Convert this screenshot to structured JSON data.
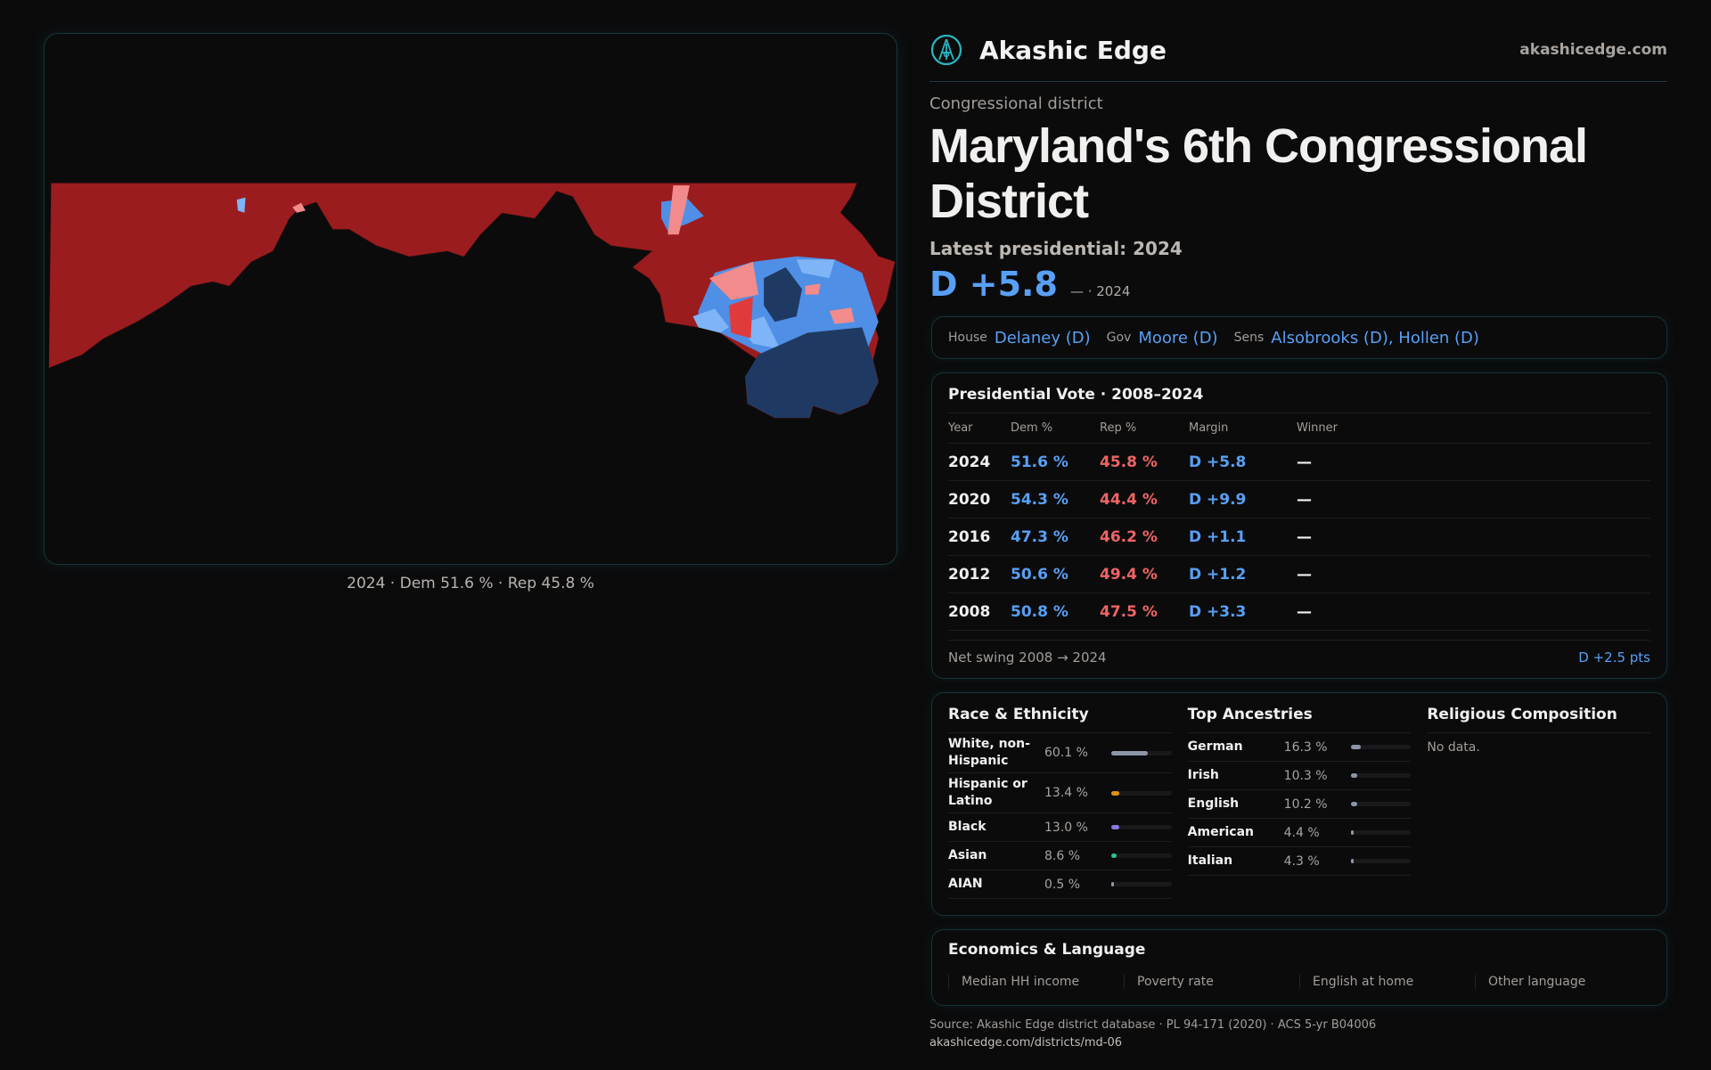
{
  "brand": {
    "name": "Akashic Edge",
    "site": "akashicedge.com"
  },
  "header": {
    "kind": "Congressional district",
    "title": "Maryland's 6th Congressional District",
    "latest": "Latest presidential: 2024",
    "margin": "D +5.8",
    "margin_sub": "— · 2024"
  },
  "map": {
    "caption": "2024 · Dem 51.6 % · Rep 45.8 %",
    "colors": {
      "safe_rep": "#9b1c1f",
      "lean_rep": "#f28b8b",
      "safe_dem": "#1f3a62",
      "lean_dem": "#4f8fe6"
    }
  },
  "officials": {
    "house_label": "House",
    "house": "Delaney (D)",
    "gov_label": "Gov",
    "gov": "Moore (D)",
    "sens_label": "Sens",
    "sens": "Alsobrooks (D), Hollen (D)"
  },
  "presidential": {
    "title": "Presidential Vote · 2008–2024",
    "columns": [
      "Year",
      "Dem %",
      "Rep %",
      "Margin",
      "Winner"
    ],
    "rows": [
      {
        "year": "2024",
        "dem": "51.6 %",
        "rep": "45.8 %",
        "margin": "D +5.8",
        "winner": "—"
      },
      {
        "year": "2020",
        "dem": "54.3 %",
        "rep": "44.4 %",
        "margin": "D +9.9",
        "winner": "—"
      },
      {
        "year": "2016",
        "dem": "47.3 %",
        "rep": "46.2 %",
        "margin": "D +1.1",
        "winner": "—"
      },
      {
        "year": "2012",
        "dem": "50.6 %",
        "rep": "49.4 %",
        "margin": "D +1.2",
        "winner": "—"
      },
      {
        "year": "2008",
        "dem": "50.8 %",
        "rep": "47.5 %",
        "margin": "D +3.3",
        "winner": "—"
      }
    ],
    "swing_label": "Net swing 2008 → 2024",
    "swing_value": "D +2.5 pts"
  },
  "race": {
    "title": "Race & Ethnicity",
    "rows": [
      {
        "name": "White, non-Hispanic",
        "pct": "60.1 %",
        "value": 60.1,
        "color": "#8d96a8"
      },
      {
        "name": "Hispanic or Latino",
        "pct": "13.4 %",
        "value": 13.4,
        "color": "#e0920f"
      },
      {
        "name": "Black",
        "pct": "13.0 %",
        "value": 13.0,
        "color": "#8a78e0"
      },
      {
        "name": "Asian",
        "pct": "8.6 %",
        "value": 8.6,
        "color": "#2fbf8f"
      },
      {
        "name": "AIAN",
        "pct": "0.5 %",
        "value": 0.5,
        "color": "#8d96a8"
      }
    ]
  },
  "ancestry": {
    "title": "Top Ancestries",
    "rows": [
      {
        "name": "German",
        "pct": "16.3 %",
        "value": 16.3,
        "color": "#8d96a8"
      },
      {
        "name": "Irish",
        "pct": "10.3 %",
        "value": 10.3,
        "color": "#8d96a8"
      },
      {
        "name": "English",
        "pct": "10.2 %",
        "value": 10.2,
        "color": "#8d96a8"
      },
      {
        "name": "American",
        "pct": "4.4 %",
        "value": 4.4,
        "color": "#8d96a8"
      },
      {
        "name": "Italian",
        "pct": "4.3 %",
        "value": 4.3,
        "color": "#8d96a8"
      }
    ]
  },
  "religion": {
    "title": "Religious Composition",
    "empty": "No data."
  },
  "economics": {
    "title": "Economics & Language",
    "metrics": [
      "Median HH income",
      "Poverty rate",
      "English at home",
      "Other language"
    ]
  },
  "source": {
    "line": "Source: Akashic Edge district database · PL 94-171 (2020) · ACS 5-yr B04006",
    "url": "akashicedge.com/districts/md-06"
  }
}
